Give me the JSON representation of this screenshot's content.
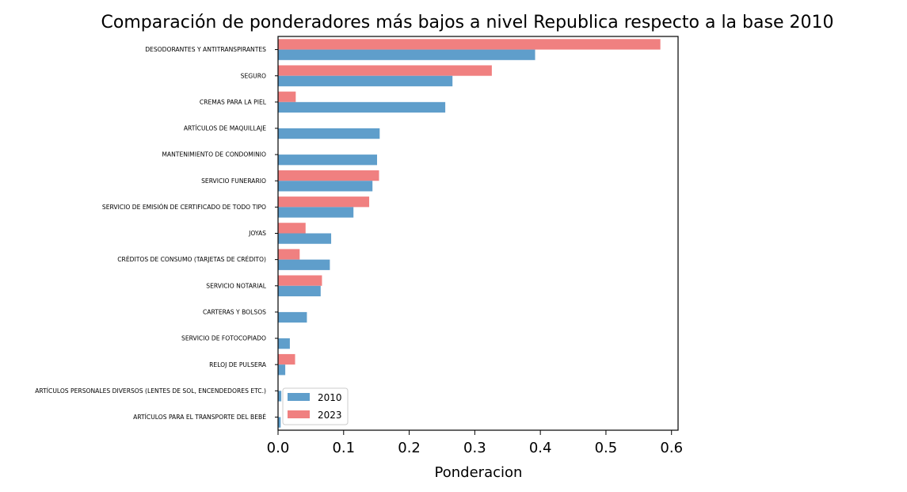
{
  "chart_data": {
    "type": "bar",
    "orientation": "horizontal",
    "title": "Comparación de ponderadores más bajos a nivel Republica respecto a la base 2010",
    "xlabel": "Ponderacion",
    "ylabel": "",
    "xlim": [
      0,
      0.61
    ],
    "xticks": [
      "0.0",
      "0.1",
      "0.2",
      "0.3",
      "0.4",
      "0.5",
      "0.6"
    ],
    "legend_position": "lower-left",
    "grid": false,
    "categories": [
      "DESODORANTES Y ANTITRANSPIRANTES",
      "SEGURO",
      "CREMAS PARA LA PIEL",
      "ARTÍCULOS DE MAQUILLAJE",
      "MANTENIMIENTO DE CONDOMINIO",
      "SERVICIO FUNERARIO",
      "SERVICIO DE EMISIÓN DE CERTIFICADO DE TODO TIPO",
      "JOYAS",
      "CRÉDITOS DE CONSUMO (TARJETAS DE CRÉDITO)",
      "SERVICIO NOTARIAL",
      "CARTERAS Y BOLSOS",
      "SERVICIO DE FOTOCOPIADO",
      "RELOJ DE PULSERA",
      "ARTÍCULOS PERSONALES DIVERSOS (LENTES DE SOL, ENCENDEDORES ETC.)",
      "ARTÍCULOS PARA EL TRANSPORTE DEL BEBÉ"
    ],
    "series": [
      {
        "name": "2010",
        "color": "#5f9ecb",
        "values": [
          0.392,
          0.266,
          0.255,
          0.155,
          0.151,
          0.144,
          0.115,
          0.081,
          0.079,
          0.065,
          0.044,
          0.018,
          0.011,
          0.005,
          0.004
        ]
      },
      {
        "name": "2023",
        "color": "#f08080",
        "values": [
          0.583,
          0.326,
          0.027,
          0.0,
          0.0,
          0.154,
          0.139,
          0.042,
          0.033,
          0.067,
          0.0,
          0.0,
          0.026,
          0.0,
          0.0
        ]
      }
    ]
  }
}
